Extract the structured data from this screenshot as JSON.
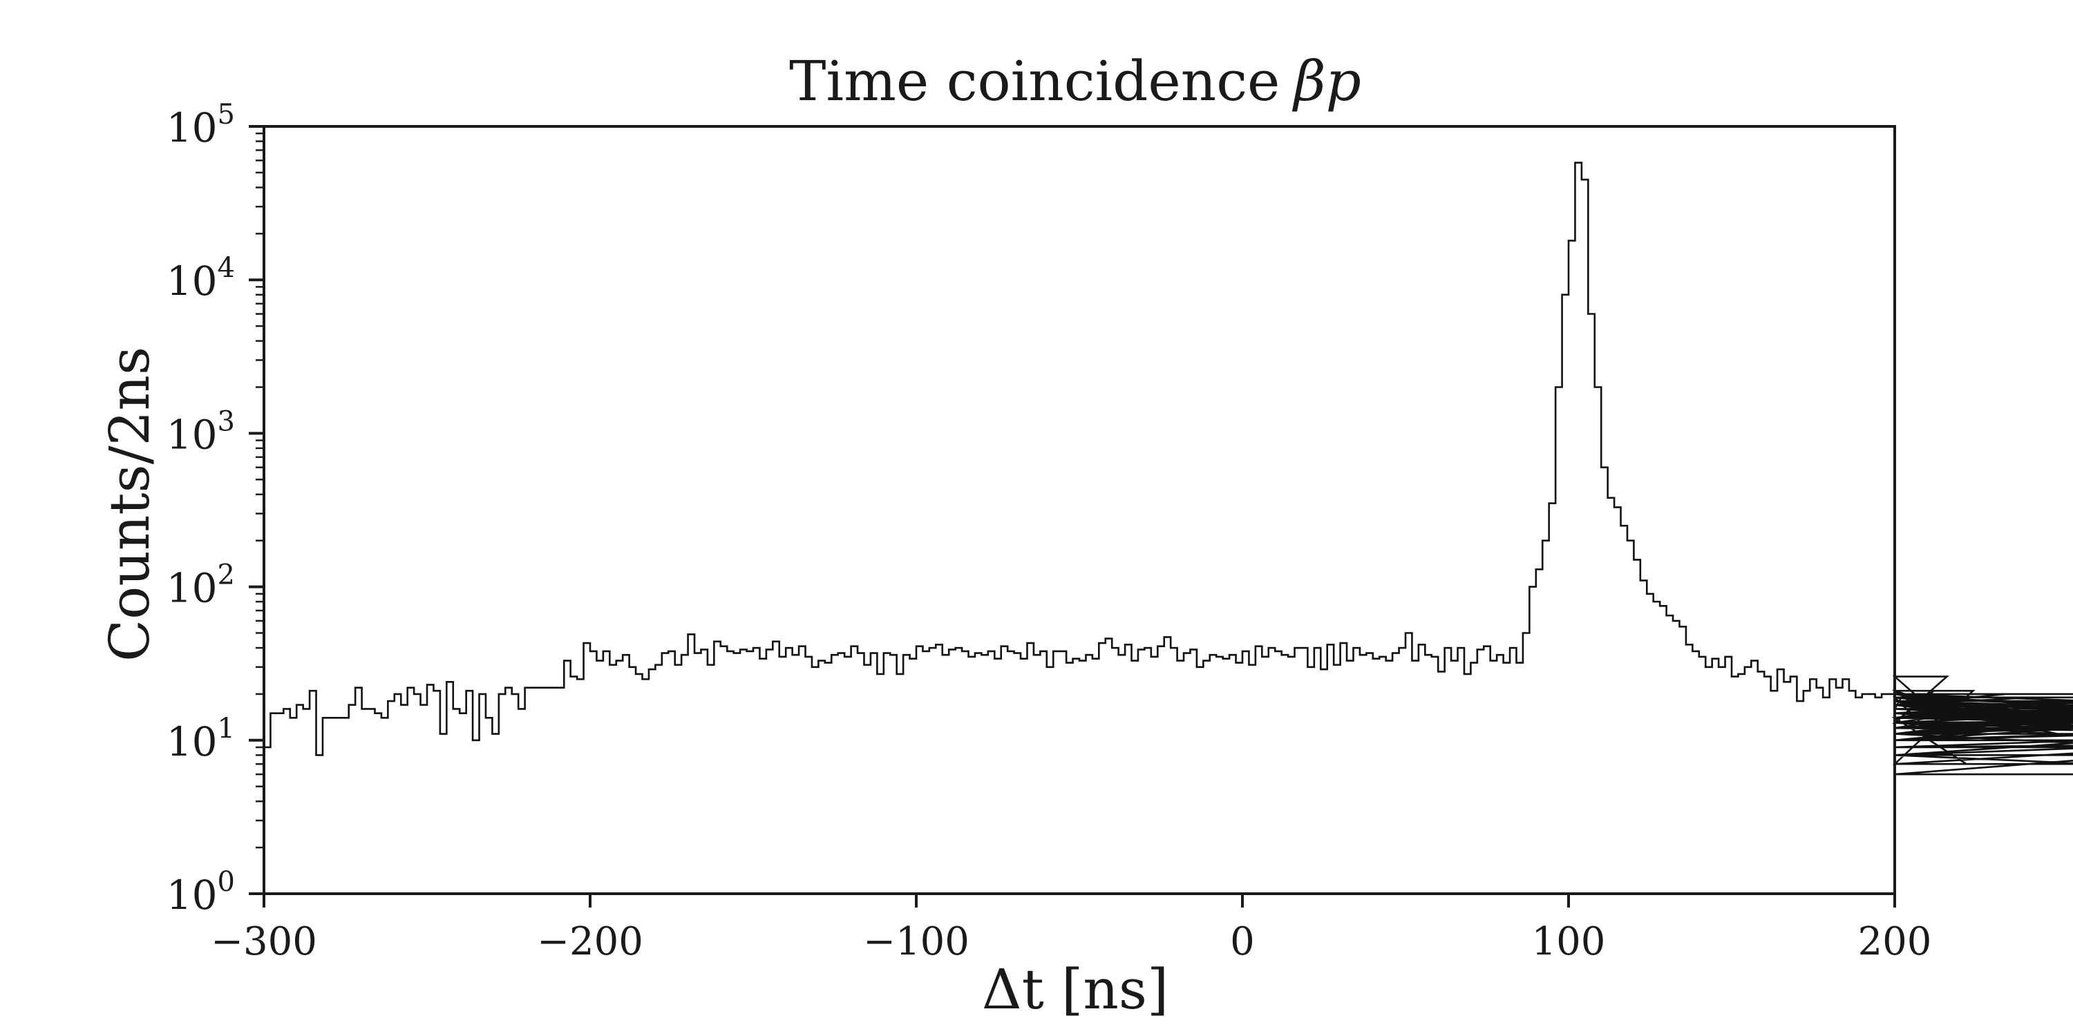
{
  "chart_data": {
    "type": "step",
    "title": "Time coincidence",
    "title_symbol": "βp",
    "xlabel": "Δt [ns]",
    "ylabel": "Counts/2ns",
    "xlim": [
      -300,
      200
    ],
    "ylim": [
      1,
      100000
    ],
    "yscale": "log",
    "grid": false,
    "bin_width": 2,
    "x_ticks": [
      -300,
      -200,
      -100,
      0,
      100,
      200
    ],
    "x_tick_labels": [
      "−300",
      "−200",
      "−100",
      "0",
      "100",
      "200"
    ],
    "y_ticks": [
      1,
      10,
      100,
      1000,
      10000,
      100000
    ],
    "y_tick_labels": [
      {
        "base": "10",
        "exp": "0"
      },
      {
        "base": "10",
        "exp": "1"
      },
      {
        "base": "10",
        "exp": "2"
      },
      {
        "base": "10",
        "exp": "3"
      },
      {
        "base": "10",
        "exp": "4"
      },
      {
        "base": "10",
        "exp": "5"
      }
    ],
    "series": [
      {
        "x_start": -300,
        "values": [
          9,
          15,
          15,
          16,
          14,
          17,
          16,
          21,
          8,
          14,
          14,
          14,
          14,
          17,
          22,
          16,
          16,
          15,
          14,
          18,
          20,
          17,
          22,
          20,
          17,
          23,
          21,
          11,
          24,
          16,
          15,
          21,
          10,
          20,
          14,
          11,
          20,
          22,
          20,
          16,
          22,
          22,
          22,
          22,
          22,
          22,
          33,
          26,
          25,
          43,
          38,
          33,
          38,
          31,
          33,
          36,
          30,
          27,
          25,
          29,
          31,
          37,
          38,
          31,
          36,
          49,
          37,
          39,
          31,
          44,
          41,
          38,
          37,
          39,
          38,
          40,
          34,
          39,
          44,
          35,
          40,
          36,
          41,
          35,
          30,
          33,
          32,
          36,
          37,
          35,
          41,
          37,
          31,
          37,
          27,
          37,
          36,
          27,
          36,
          34,
          41,
          38,
          40,
          42,
          36,
          39,
          40,
          38,
          35,
          37,
          36,
          38,
          34,
          41,
          38,
          37,
          34,
          43,
          36,
          38,
          30,
          38,
          38,
          32,
          34,
          33,
          36,
          34,
          43,
          46,
          40,
          36,
          42,
          33,
          39,
          40,
          35,
          41,
          47,
          40,
          33,
          37,
          39,
          30,
          33,
          36,
          35,
          34,
          36,
          32,
          38,
          31,
          41,
          35,
          40,
          38,
          36,
          35,
          40,
          40,
          30,
          40,
          29,
          42,
          31,
          43,
          33,
          40,
          36,
          37,
          34,
          35,
          33,
          37,
          40,
          50,
          33,
          42,
          36,
          35,
          28,
          40,
          33,
          40,
          27,
          32,
          39,
          41,
          33,
          36,
          32,
          40,
          32,
          50,
          100,
          130,
          200,
          350,
          2000,
          8000,
          18000,
          58000,
          45000,
          6000,
          2000,
          600,
          380,
          330,
          250,
          200,
          150,
          110,
          90,
          80,
          75,
          65,
          60,
          55,
          42,
          38,
          35,
          30,
          34,
          30,
          35,
          26,
          27,
          30,
          33,
          28,
          26,
          21,
          29,
          24,
          26,
          18,
          21,
          25,
          22,
          19,
          25,
          22,
          25,
          21,
          19,
          20,
          20,
          19,
          20,
          20,
          16,
          19,
          19,
          19,
          13,
          13,
          21,
          13,
          26,
          12,
          14,
          7,
          21,
          14,
          15,
          14,
          17,
          20,
          15,
          14,
          17,
          19,
          15,
          13,
          18,
          11,
          15,
          14,
          14,
          15,
          18,
          13,
          15,
          14,
          14,
          14,
          18,
          15,
          16,
          14,
          17,
          16,
          16,
          15,
          16,
          16,
          14,
          16,
          14,
          16,
          13,
          11,
          17,
          12,
          14,
          18,
          9,
          11,
          13,
          17,
          8,
          10,
          18,
          11,
          11,
          8,
          6,
          6,
          10,
          10,
          10,
          10,
          12,
          19,
          14,
          14,
          15,
          13,
          12,
          11,
          15,
          12,
          20,
          15,
          8,
          14,
          14,
          12,
          15,
          10,
          13,
          7,
          12,
          18,
          14,
          17,
          15,
          11,
          17,
          10,
          19,
          14,
          14,
          13,
          14,
          17,
          10,
          14,
          14,
          11,
          20,
          9,
          10
        ]
      }
    ]
  }
}
